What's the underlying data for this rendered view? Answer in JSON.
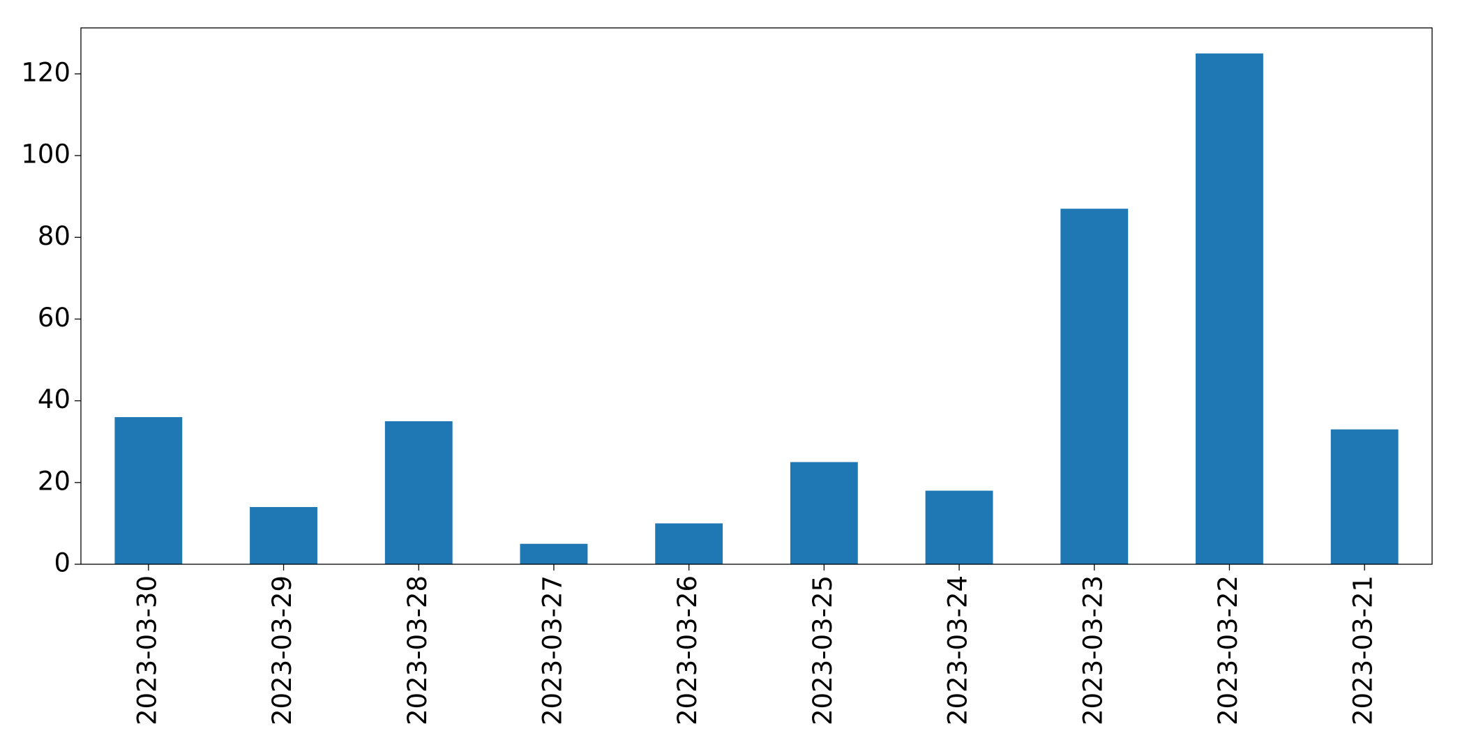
{
  "chart_data": {
    "type": "bar",
    "categories": [
      "2023-03-30",
      "2023-03-29",
      "2023-03-28",
      "2023-03-27",
      "2023-03-26",
      "2023-03-25",
      "2023-03-24",
      "2023-03-23",
      "2023-03-22",
      "2023-03-21"
    ],
    "values": [
      36,
      14,
      35,
      5,
      10,
      25,
      18,
      87,
      125,
      33
    ],
    "color": "#1f77b4",
    "ylim": [
      0,
      131.25
    ],
    "yticks": [
      0,
      20,
      40,
      60,
      80,
      100,
      120
    ],
    "grid": false
  }
}
